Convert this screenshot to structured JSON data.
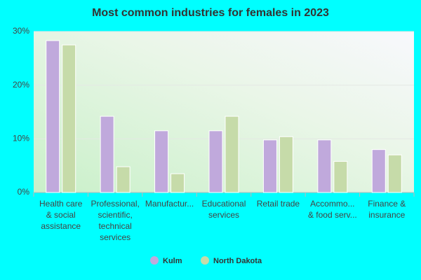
{
  "chart_data": {
    "type": "bar",
    "title": "Most common industries for females in 2023",
    "categories": [
      "Health care\n& social\nassistance",
      "Professional,\nscientific,\ntechnical\nservices",
      "Manufactur...",
      "Educational\nservices",
      "Retail trade",
      "Accommo...\n& food serv...",
      "Finance &\ninsurance"
    ],
    "series": [
      {
        "name": "Kulm",
        "color": "#c0a9dc",
        "values": [
          28.3,
          14.2,
          11.5,
          11.5,
          9.8,
          9.8,
          8.0
        ]
      },
      {
        "name": "North Dakota",
        "color": "#c6dba9",
        "values": [
          27.5,
          4.8,
          3.5,
          14.2,
          10.4,
          5.8,
          7.0
        ]
      }
    ],
    "ylim": [
      0,
      30
    ],
    "yticks": [
      {
        "value": 0,
        "label": "0%"
      },
      {
        "value": 10,
        "label": "10%"
      },
      {
        "value": 20,
        "label": "20%"
      },
      {
        "value": 30,
        "label": "30%"
      }
    ],
    "grid": true
  }
}
